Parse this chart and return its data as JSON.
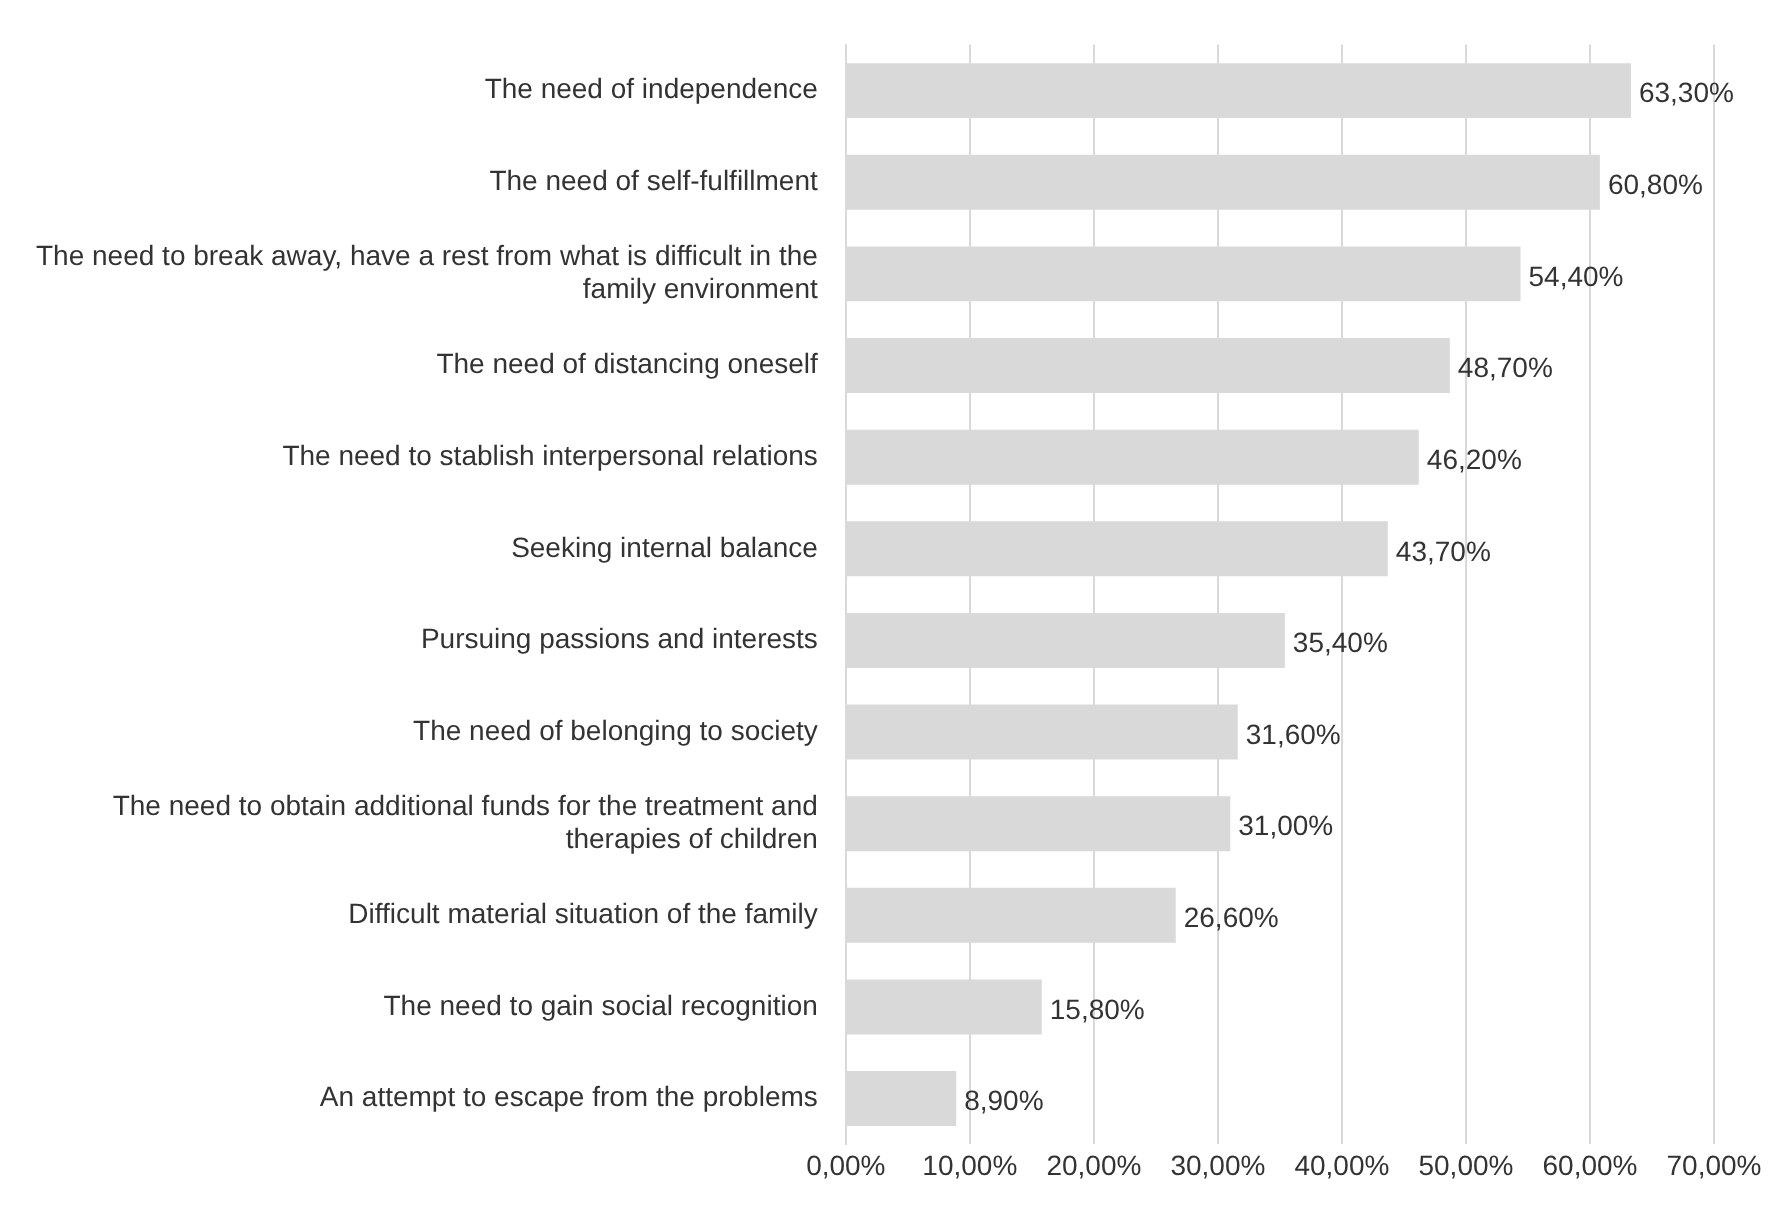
{
  "chart_data": {
    "type": "bar",
    "orientation": "horizontal",
    "categories": [
      "The need of independence",
      "The need of self-fulfillment",
      "The need to break away, have a rest from what is difficult in the family environment",
      "The need of distancing oneself",
      "The need to stablish interpersonal relations",
      "Seeking internal balance",
      "Pursuing passions and interests",
      "The need of belonging to society",
      "The need to obtain additional funds for the treatment and therapies of children",
      "Difficult material situation of the family",
      "The need to gain social recognition",
      "An attempt to escape from the problems"
    ],
    "values": [
      63.3,
      60.8,
      54.4,
      48.7,
      46.2,
      43.7,
      35.4,
      31.6,
      31.0,
      26.6,
      15.8,
      8.9
    ],
    "value_labels": [
      "63,30%",
      "60,80%",
      "54,40%",
      "48,70%",
      "46,20%",
      "43,70%",
      "35,40%",
      "31,60%",
      "31,00%",
      "26,60%",
      "15,80%",
      "8,90%"
    ],
    "color": "#d9d9d9",
    "xlim": [
      0,
      70
    ],
    "xticks": [
      {
        "value": 0,
        "label": "0,00%"
      },
      {
        "value": 10,
        "label": "10,00%"
      },
      {
        "value": 20,
        "label": "20,00%"
      },
      {
        "value": 30,
        "label": "30,00%"
      },
      {
        "value": 40,
        "label": "40,00%"
      },
      {
        "value": 50,
        "label": "50,00%"
      },
      {
        "value": 60,
        "label": "60,00%"
      },
      {
        "value": 70,
        "label": "70,00%"
      }
    ],
    "grid": "x"
  }
}
